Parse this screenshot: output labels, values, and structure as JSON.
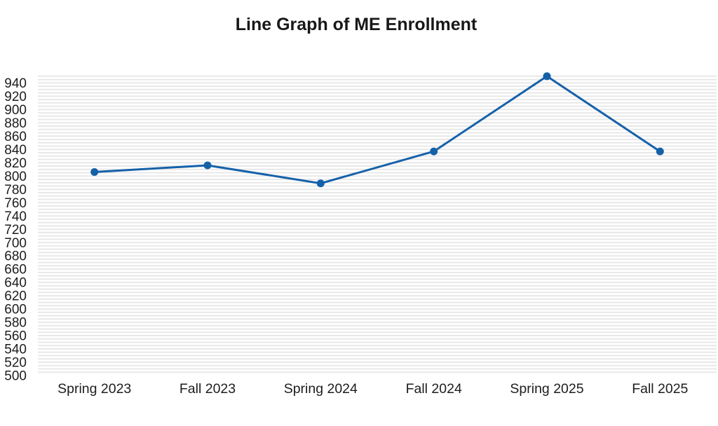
{
  "chart_data": {
    "type": "line",
    "title": "Line Graph of ME Enrollment",
    "categories": [
      "Spring 2023",
      "Fall 2023",
      "Spring 2024",
      "Fall 2024",
      "Spring 2025",
      "Fall 2025"
    ],
    "values": [
      806,
      816,
      789,
      837,
      950,
      837
    ],
    "xlabel": "",
    "ylabel": "",
    "ylim": [
      500,
      953
    ],
    "yticks": [
      500,
      520,
      540,
      560,
      580,
      600,
      620,
      640,
      660,
      680,
      700,
      720,
      740,
      760,
      780,
      800,
      820,
      840,
      860,
      880,
      900,
      920,
      940
    ],
    "minor_grid_step": 5,
    "grid": "horizontal minor gridlines only",
    "legend": "none",
    "marker": "filled-circle",
    "colors": {
      "line": "#1561a9",
      "marker": "#1561a9",
      "gridline": "#e8e8e8",
      "text": "#1d1d1d",
      "background": "#ffffff"
    }
  }
}
